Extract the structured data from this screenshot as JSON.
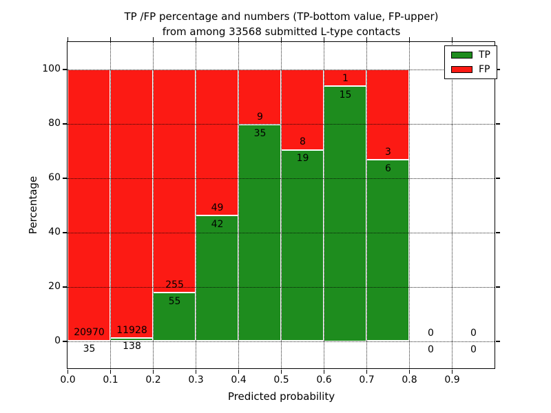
{
  "chart_data": {
    "type": "bar",
    "stacked": true,
    "title_line1": "TP /FP percentage and numbers (TP-bottom value, FP-upper)",
    "title_line2": "from among 33568 submitted L-type contacts",
    "total_submitted": 33568,
    "xlabel": "Predicted probability",
    "ylabel": "Percentage",
    "x_tick_labels": [
      "0.0",
      "0.1",
      "0.2",
      "0.3",
      "0.4",
      "0.5",
      "0.6",
      "0.7",
      "0.8",
      "0.9"
    ],
    "y_tick_values": [
      0,
      20,
      40,
      60,
      80,
      100
    ],
    "y_tick_labels": [
      "0",
      "20",
      "40",
      "60",
      "80",
      "100"
    ],
    "xlim": [
      0.0,
      1.0
    ],
    "ylim": [
      -10,
      110
    ],
    "grid": "dotted",
    "bin_width": 0.1,
    "bins": [
      {
        "x_start": 0.0,
        "x_end": 0.1,
        "tp": 35,
        "fp": 20970
      },
      {
        "x_start": 0.1,
        "x_end": 0.2,
        "tp": 138,
        "fp": 11928
      },
      {
        "x_start": 0.2,
        "x_end": 0.3,
        "tp": 55,
        "fp": 255
      },
      {
        "x_start": 0.3,
        "x_end": 0.4,
        "tp": 42,
        "fp": 49
      },
      {
        "x_start": 0.4,
        "x_end": 0.5,
        "tp": 35,
        "fp": 9
      },
      {
        "x_start": 0.5,
        "x_end": 0.6,
        "tp": 19,
        "fp": 8
      },
      {
        "x_start": 0.6,
        "x_end": 0.7,
        "tp": 15,
        "fp": 1
      },
      {
        "x_start": 0.7,
        "x_end": 0.8,
        "tp": 6,
        "fp": 3
      },
      {
        "x_start": 0.8,
        "x_end": 0.9,
        "tp": 0,
        "fp": 0
      },
      {
        "x_start": 0.9,
        "x_end": 1.0,
        "tp": 0,
        "fp": 0
      }
    ],
    "legend": {
      "position": "upper right",
      "items": [
        {
          "label": "TP",
          "color": "#1e8c1e"
        },
        {
          "label": "FP",
          "color": "#fc1a14"
        }
      ]
    },
    "colors": {
      "tp": "#1e8c1e",
      "fp": "#fc1a14",
      "grid": "#000000",
      "text": "#000000",
      "background": "#ffffff"
    }
  }
}
